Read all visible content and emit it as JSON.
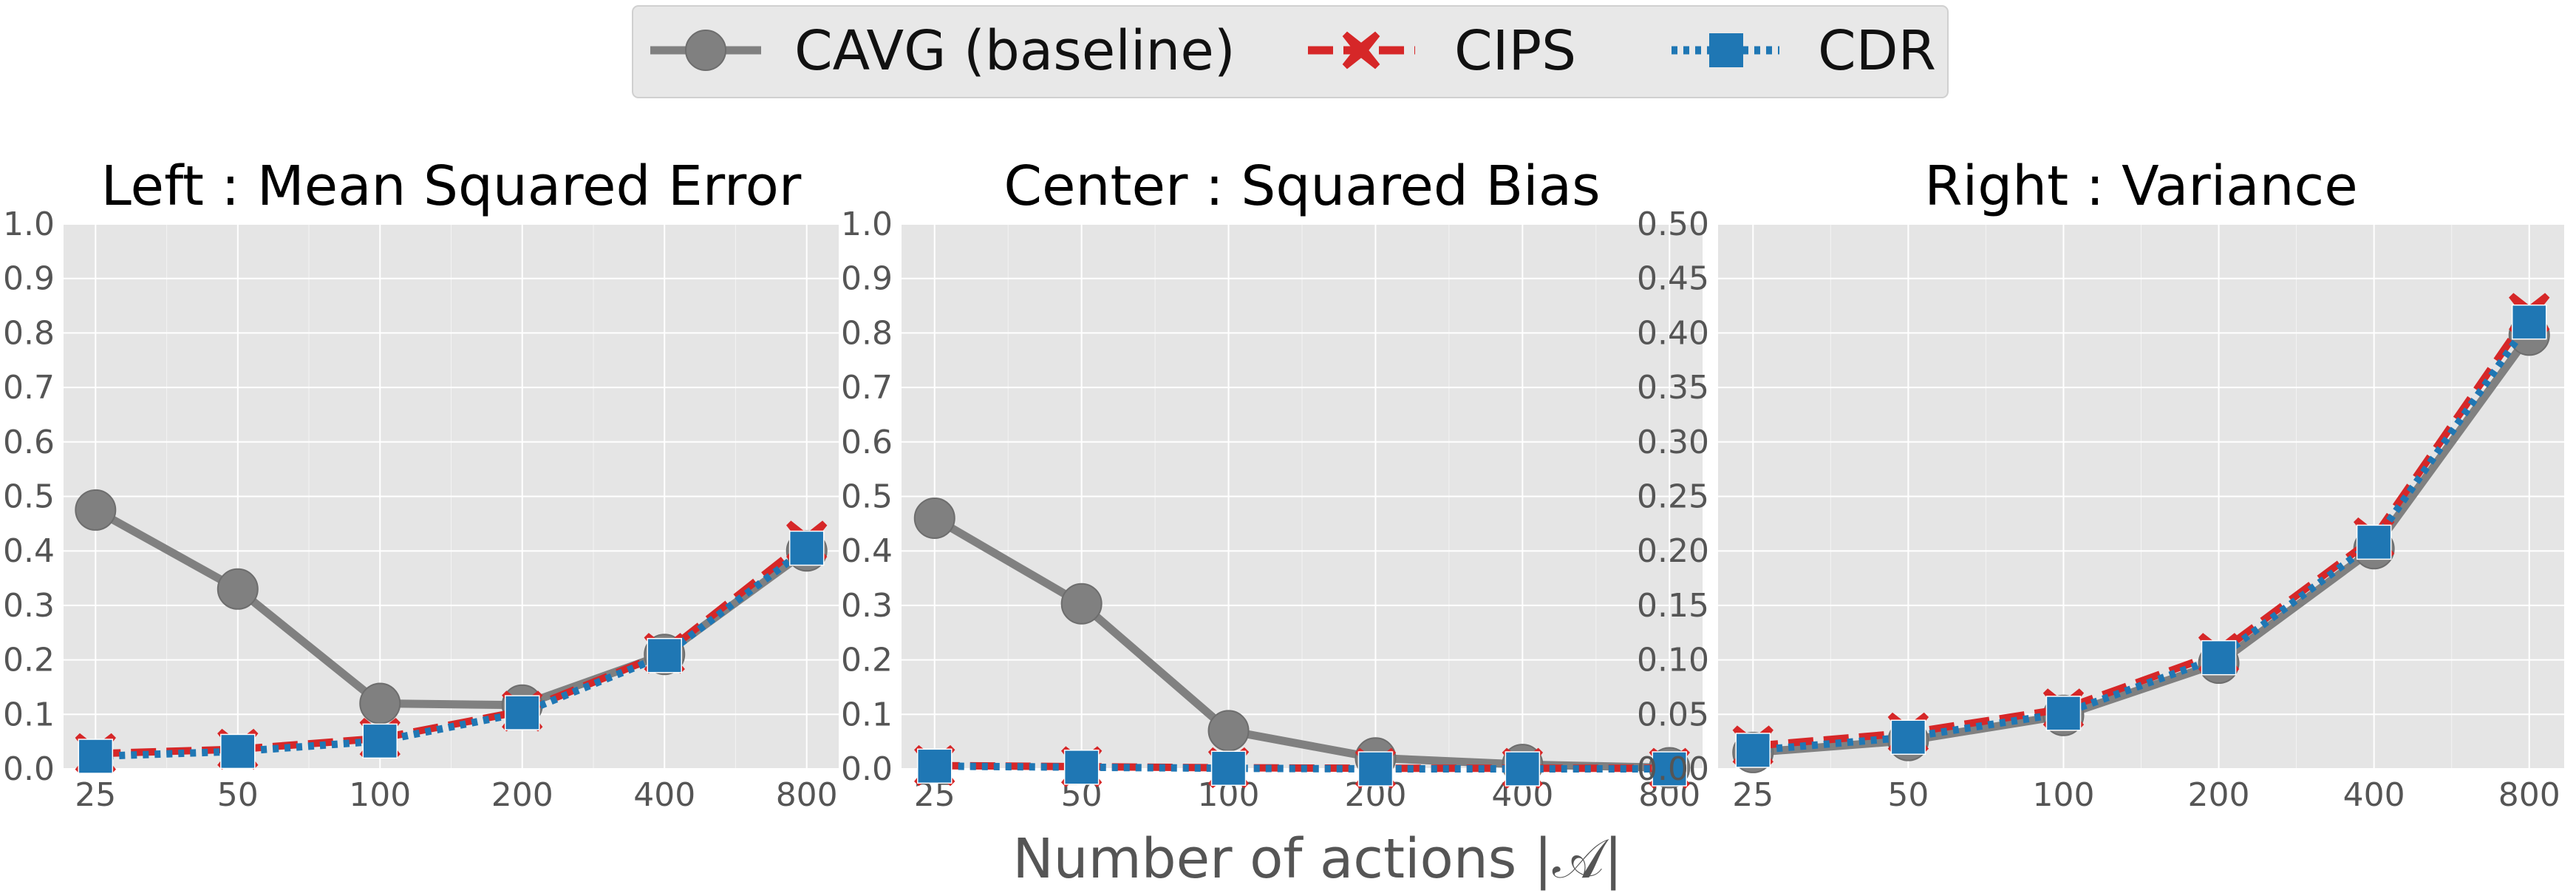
{
  "figure": {
    "xlabel": "Number of actions |𝒜|"
  },
  "legend": {
    "items": [
      {
        "series": "CAVG (baseline)",
        "label": "CAVG (baseline)"
      },
      {
        "series": "CIPS",
        "label": "CIPS"
      },
      {
        "series": "CDR",
        "label": "CDR"
      }
    ]
  },
  "colors": {
    "CAVG (baseline)": "#808080",
    "CIPS": "#d62728",
    "CDR": "#1f77b4",
    "plot_background": "#e5e5e5",
    "grid": "#ffffff"
  },
  "chart_data": [
    {
      "type": "line",
      "title": "Left : Mean Squared Error",
      "x_scale": "log",
      "categories": [
        "25",
        "50",
        "100",
        "200",
        "400",
        "800"
      ],
      "x": [
        25,
        50,
        100,
        200,
        400,
        800
      ],
      "ylim": [
        0,
        1.0
      ],
      "yticks": [
        "0.0",
        "0.1",
        "0.2",
        "0.3",
        "0.4",
        "0.5",
        "0.6",
        "0.7",
        "0.8",
        "0.9",
        "1.0"
      ],
      "grid": true,
      "series": [
        {
          "name": "CAVG (baseline)",
          "values": [
            0.475,
            0.33,
            0.12,
            0.117,
            0.21,
            0.4
          ]
        },
        {
          "name": "CIPS",
          "values": [
            0.028,
            0.036,
            0.056,
            0.106,
            0.212,
            0.418
          ]
        },
        {
          "name": "CDR",
          "values": [
            0.023,
            0.032,
            0.051,
            0.103,
            0.208,
            0.405
          ]
        }
      ]
    },
    {
      "type": "line",
      "title": "Center : Squared Bias",
      "x_scale": "log",
      "categories": [
        "25",
        "50",
        "100",
        "200",
        "400",
        "800"
      ],
      "x": [
        25,
        50,
        100,
        200,
        400,
        800
      ],
      "ylim": [
        0,
        1.0
      ],
      "yticks": [
        "0.0",
        "0.1",
        "0.2",
        "0.3",
        "0.4",
        "0.5",
        "0.6",
        "0.7",
        "0.8",
        "0.9",
        "1.0"
      ],
      "grid": true,
      "series": [
        {
          "name": "CAVG (baseline)",
          "values": [
            0.46,
            0.303,
            0.07,
            0.02,
            0.008,
            0.002
          ]
        },
        {
          "name": "CIPS",
          "values": [
            0.006,
            0.004,
            0.002,
            0.001,
            0.001,
            0.001
          ]
        },
        {
          "name": "CDR",
          "values": [
            0.005,
            0.003,
            0.001,
            0.0,
            0.0,
            0.0
          ]
        }
      ]
    },
    {
      "type": "line",
      "title": "Right : Variance",
      "x_scale": "log",
      "categories": [
        "25",
        "50",
        "100",
        "200",
        "400",
        "800"
      ],
      "x": [
        25,
        50,
        100,
        200,
        400,
        800
      ],
      "ylim": [
        0,
        0.5
      ],
      "yticks": [
        "0.00",
        "0.05",
        "0.10",
        "0.15",
        "0.20",
        "0.25",
        "0.30",
        "0.35",
        "0.40",
        "0.45",
        "0.50"
      ],
      "grid": true,
      "series": [
        {
          "name": "CAVG (baseline)",
          "values": [
            0.015,
            0.026,
            0.049,
            0.097,
            0.202,
            0.398
          ]
        },
        {
          "name": "CIPS",
          "values": [
            0.021,
            0.033,
            0.055,
            0.106,
            0.212,
            0.418
          ]
        },
        {
          "name": "CDR",
          "values": [
            0.017,
            0.029,
            0.051,
            0.102,
            0.208,
            0.41
          ]
        }
      ]
    }
  ]
}
